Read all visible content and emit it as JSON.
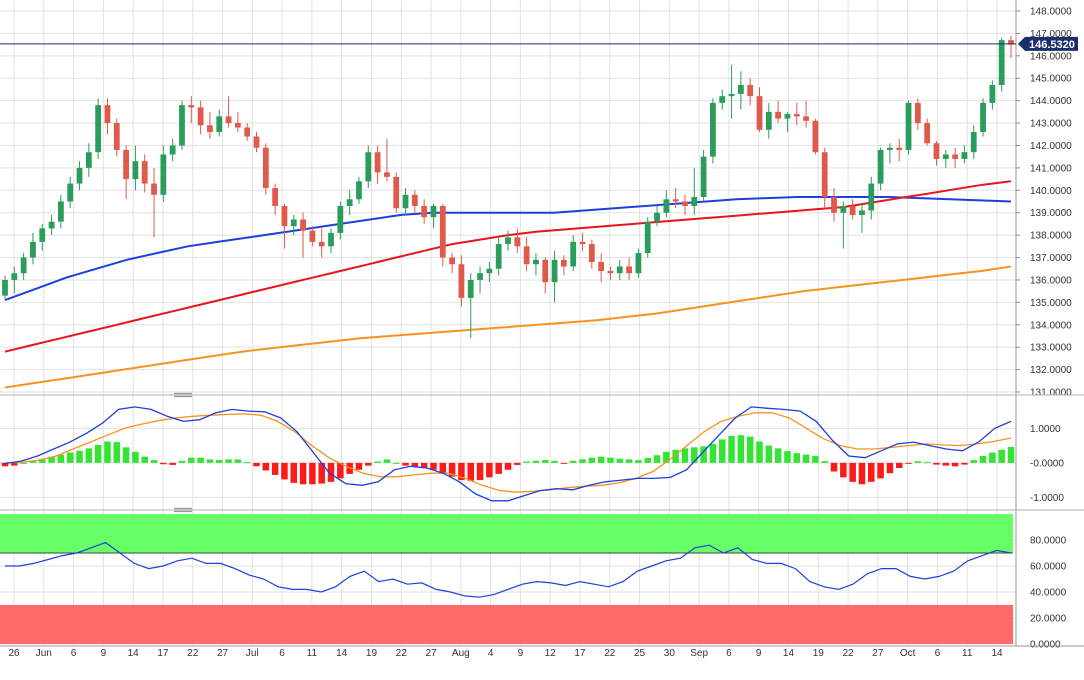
{
  "chart_data": [
    {
      "type": "candlestick",
      "panel": "price",
      "current_price_label": "146.5320",
      "current_price": 146.532,
      "ylim": [
        131.0,
        148.0
      ],
      "y_ticks": [
        "148.0000",
        "147.0000",
        "146.0000",
        "145.0000",
        "144.0000",
        "143.0000",
        "142.0000",
        "141.0000",
        "140.0000",
        "139.0000",
        "138.0000",
        "137.0000",
        "136.0000",
        "135.0000",
        "134.0000",
        "133.0000",
        "132.0000",
        "131.0000"
      ],
      "candles": [
        [
          135.3,
          136.2,
          135.1,
          136.0
        ],
        [
          136.0,
          136.6,
          135.4,
          136.3
        ],
        [
          136.3,
          137.2,
          136.0,
          137.0
        ],
        [
          137.0,
          138.1,
          136.7,
          137.7
        ],
        [
          137.7,
          138.5,
          137.3,
          138.3
        ],
        [
          138.3,
          138.9,
          138.0,
          138.6
        ],
        [
          138.6,
          139.8,
          138.3,
          139.5
        ],
        [
          139.5,
          140.6,
          139.2,
          140.3
        ],
        [
          140.3,
          141.3,
          140.0,
          141.0
        ],
        [
          141.0,
          142.1,
          140.6,
          141.7
        ],
        [
          141.7,
          144.1,
          141.4,
          143.8
        ],
        [
          143.8,
          144.1,
          142.5,
          143.0
        ],
        [
          143.0,
          143.2,
          141.5,
          141.8
        ],
        [
          141.8,
          142.0,
          139.6,
          140.5
        ],
        [
          140.5,
          142.0,
          140.0,
          141.3
        ],
        [
          141.3,
          141.6,
          139.9,
          140.3
        ],
        [
          140.3,
          141.0,
          137.9,
          139.8
        ],
        [
          139.8,
          142.0,
          139.5,
          141.6
        ],
        [
          141.6,
          142.3,
          141.3,
          142.0
        ],
        [
          142.0,
          144.0,
          141.8,
          143.8
        ],
        [
          143.8,
          144.2,
          143.0,
          143.7
        ],
        [
          143.7,
          144.0,
          142.5,
          142.9
        ],
        [
          142.9,
          143.5,
          142.3,
          142.6
        ],
        [
          142.6,
          143.6,
          142.4,
          143.3
        ],
        [
          143.3,
          144.2,
          142.8,
          143.0
        ],
        [
          143.0,
          143.5,
          142.6,
          142.8
        ],
        [
          142.8,
          143.0,
          142.2,
          142.4
        ],
        [
          142.4,
          142.6,
          141.7,
          141.9
        ],
        [
          141.9,
          142.1,
          139.8,
          140.1
        ],
        [
          140.1,
          140.3,
          138.9,
          139.3
        ],
        [
          139.3,
          139.4,
          137.4,
          138.4
        ],
        [
          138.4,
          138.9,
          138.0,
          138.7
        ],
        [
          138.7,
          139.0,
          137.0,
          138.2
        ],
        [
          138.2,
          138.4,
          137.5,
          137.7
        ],
        [
          137.7,
          138.3,
          137.0,
          137.5
        ],
        [
          137.5,
          138.3,
          137.2,
          138.1
        ],
        [
          138.1,
          139.5,
          137.8,
          139.3
        ],
        [
          139.3,
          140.0,
          138.9,
          139.6
        ],
        [
          139.6,
          140.6,
          139.4,
          140.4
        ],
        [
          140.4,
          142.0,
          140.1,
          141.7
        ],
        [
          141.7,
          142.0,
          140.3,
          140.8
        ],
        [
          140.8,
          142.3,
          140.4,
          140.6
        ],
        [
          140.6,
          140.8,
          139.0,
          139.2
        ],
        [
          139.2,
          140.1,
          138.9,
          139.8
        ],
        [
          139.8,
          140.0,
          139.0,
          139.3
        ],
        [
          139.3,
          139.6,
          138.5,
          138.8
        ],
        [
          138.8,
          139.4,
          138.3,
          139.3
        ],
        [
          139.3,
          139.4,
          136.6,
          137.0
        ],
        [
          137.0,
          137.2,
          136.3,
          136.7
        ],
        [
          136.7,
          137.1,
          134.8,
          135.2
        ],
        [
          135.2,
          136.3,
          133.4,
          136.0
        ],
        [
          136.0,
          136.6,
          135.4,
          136.3
        ],
        [
          136.3,
          136.8,
          135.9,
          136.5
        ],
        [
          136.5,
          137.9,
          136.2,
          137.6
        ],
        [
          137.6,
          138.2,
          137.3,
          137.9
        ],
        [
          137.9,
          138.3,
          137.2,
          137.5
        ],
        [
          137.5,
          137.9,
          136.4,
          136.7
        ],
        [
          136.7,
          137.2,
          136.2,
          136.9
        ],
        [
          136.9,
          137.0,
          135.4,
          135.9
        ],
        [
          135.9,
          137.3,
          135.0,
          136.9
        ],
        [
          136.9,
          137.1,
          136.2,
          136.6
        ],
        [
          136.6,
          138.0,
          136.4,
          137.7
        ],
        [
          137.7,
          138.1,
          137.3,
          137.6
        ],
        [
          137.6,
          137.8,
          136.5,
          136.8
        ],
        [
          136.8,
          137.2,
          135.9,
          136.4
        ],
        [
          136.4,
          136.6,
          136.0,
          136.3
        ],
        [
          136.3,
          136.9,
          136.0,
          136.6
        ],
        [
          136.6,
          137.0,
          136.0,
          136.3
        ],
        [
          136.3,
          137.4,
          136.1,
          137.2
        ],
        [
          137.2,
          138.8,
          137.0,
          138.6
        ],
        [
          138.6,
          139.3,
          138.4,
          139.0
        ],
        [
          139.0,
          140.0,
          138.8,
          139.6
        ],
        [
          139.6,
          140.1,
          139.2,
          139.5
        ],
        [
          139.5,
          139.8,
          138.9,
          139.3
        ],
        [
          139.3,
          141.0,
          138.9,
          139.7
        ],
        [
          139.7,
          141.8,
          139.5,
          141.5
        ],
        [
          141.5,
          144.1,
          141.2,
          143.9
        ],
        [
          143.9,
          144.5,
          143.6,
          144.2
        ],
        [
          144.2,
          145.6,
          143.2,
          144.3
        ],
        [
          144.3,
          145.3,
          143.6,
          144.7
        ],
        [
          144.7,
          145.0,
          143.8,
          144.2
        ],
        [
          144.2,
          144.6,
          142.6,
          142.7
        ],
        [
          142.7,
          143.9,
          142.3,
          143.5
        ],
        [
          143.5,
          144.0,
          143.0,
          143.2
        ],
        [
          143.2,
          143.5,
          142.6,
          143.4
        ],
        [
          143.4,
          143.9,
          142.9,
          143.3
        ],
        [
          143.3,
          144.0,
          142.8,
          143.1
        ],
        [
          143.1,
          143.2,
          141.6,
          141.7
        ],
        [
          141.7,
          141.9,
          139.2,
          139.7
        ],
        [
          139.7,
          140.1,
          138.6,
          139.0
        ],
        [
          139.0,
          139.5,
          137.4,
          139.3
        ],
        [
          139.3,
          139.6,
          138.7,
          138.9
        ],
        [
          138.9,
          139.4,
          138.1,
          139.1
        ],
        [
          139.1,
          140.6,
          138.7,
          140.3
        ],
        [
          140.3,
          141.9,
          140.0,
          141.8
        ],
        [
          141.8,
          142.1,
          141.2,
          141.9
        ],
        [
          141.9,
          142.3,
          141.3,
          141.8
        ],
        [
          141.8,
          144.0,
          141.6,
          143.9
        ],
        [
          143.9,
          144.1,
          142.7,
          143.0
        ],
        [
          143.0,
          143.2,
          142.0,
          142.1
        ],
        [
          142.1,
          142.2,
          141.1,
          141.4
        ],
        [
          141.4,
          141.8,
          141.0,
          141.6
        ],
        [
          141.6,
          141.9,
          141.0,
          141.4
        ],
        [
          141.4,
          142.0,
          141.2,
          141.7
        ],
        [
          141.7,
          142.9,
          141.4,
          142.6
        ],
        [
          142.6,
          144.1,
          142.4,
          143.9
        ],
        [
          143.9,
          144.9,
          143.6,
          144.7
        ],
        [
          144.7,
          146.8,
          144.4,
          146.7
        ],
        [
          146.7,
          146.9,
          145.9,
          146.5
        ]
      ],
      "moving_averages": [
        {
          "color": "#1e3fe0",
          "values": [
            135.1,
            135.6,
            136.1,
            136.5,
            136.9,
            137.2,
            137.5,
            137.7,
            137.9,
            138.1,
            138.3,
            138.5,
            138.7,
            138.9,
            139.0,
            139.0,
            139.0,
            139.0,
            139.0,
            139.1,
            139.2,
            139.3,
            139.4,
            139.5,
            139.6,
            139.65,
            139.7,
            139.7,
            139.7,
            139.7,
            139.65,
            139.6,
            139.55,
            139.5
          ]
        },
        {
          "color": "#e8141e",
          "values": [
            132.8,
            133.1,
            133.4,
            133.7,
            134.0,
            134.3,
            134.6,
            134.9,
            135.2,
            135.5,
            135.8,
            136.1,
            136.4,
            136.7,
            137.0,
            137.3,
            137.6,
            137.8,
            138.0,
            138.15,
            138.25,
            138.35,
            138.45,
            138.55,
            138.65,
            138.75,
            138.85,
            138.95,
            139.05,
            139.15,
            139.25,
            139.45,
            139.65,
            139.85,
            140.05,
            140.25,
            140.4
          ]
        },
        {
          "color": "#f7931e",
          "values": [
            131.2,
            131.4,
            131.6,
            131.8,
            132.0,
            132.2,
            132.4,
            132.6,
            132.8,
            132.95,
            133.1,
            133.25,
            133.4,
            133.5,
            133.6,
            133.7,
            133.8,
            133.9,
            134.0,
            134.1,
            134.2,
            134.35,
            134.5,
            134.7,
            134.9,
            135.1,
            135.3,
            135.5,
            135.65,
            135.8,
            135.95,
            136.1,
            136.25,
            136.4,
            136.6
          ]
        }
      ]
    },
    {
      "type": "histogram",
      "panel": "macd",
      "y_ticks": [
        "1.0000",
        "-0.0000",
        "-1.0000"
      ],
      "ylim": [
        -1.25,
        1.85
      ],
      "histogram": [
        -0.1,
        -0.08,
        0.0,
        0.05,
        0.12,
        0.18,
        0.24,
        0.3,
        0.35,
        0.42,
        0.52,
        0.62,
        0.6,
        0.45,
        0.32,
        0.18,
        0.08,
        -0.04,
        -0.06,
        0.06,
        0.15,
        0.15,
        0.1,
        0.08,
        0.1,
        0.1,
        0.02,
        -0.1,
        -0.22,
        -0.35,
        -0.48,
        -0.58,
        -0.62,
        -0.62,
        -0.6,
        -0.55,
        -0.45,
        -0.32,
        -0.2,
        -0.08,
        0.04,
        0.1,
        0.0,
        -0.08,
        -0.12,
        -0.15,
        -0.2,
        -0.3,
        -0.4,
        -0.5,
        -0.52,
        -0.5,
        -0.42,
        -0.32,
        -0.2,
        -0.06,
        0.04,
        0.06,
        0.08,
        0.06,
        -0.02,
        0.06,
        0.1,
        0.15,
        0.18,
        0.15,
        0.12,
        0.1,
        0.08,
        0.14,
        0.22,
        0.32,
        0.38,
        0.42,
        0.45,
        0.48,
        0.55,
        0.68,
        0.78,
        0.8,
        0.76,
        0.62,
        0.5,
        0.42,
        0.34,
        0.28,
        0.24,
        0.2,
        0.05,
        -0.25,
        -0.42,
        -0.55,
        -0.62,
        -0.55,
        -0.45,
        -0.3,
        -0.15,
        -0.02,
        0.05,
        0.02,
        -0.05,
        -0.08,
        -0.1,
        -0.05,
        0.08,
        0.2,
        0.3,
        0.38,
        0.46
      ],
      "fast_line": {
        "color": "#1e3fe0",
        "values": [
          -0.02,
          0.05,
          0.2,
          0.4,
          0.6,
          0.85,
          1.15,
          1.55,
          1.62,
          1.55,
          1.35,
          1.2,
          1.25,
          1.45,
          1.55,
          1.5,
          1.48,
          1.3,
          0.9,
          0.3,
          -0.3,
          -0.6,
          -0.65,
          -0.55,
          -0.2,
          -0.1,
          -0.15,
          -0.3,
          -0.55,
          -0.9,
          -1.1,
          -1.1,
          -0.95,
          -0.8,
          -0.75,
          -0.78,
          -0.65,
          -0.55,
          -0.5,
          -0.45,
          -0.45,
          -0.42,
          -0.2,
          0.3,
          0.8,
          1.3,
          1.62,
          1.58,
          1.55,
          1.5,
          1.2,
          0.65,
          0.2,
          0.15,
          0.35,
          0.55,
          0.6,
          0.5,
          0.4,
          0.35,
          0.6,
          1.0,
          1.2
        ]
      },
      "slow_line": {
        "color": "#f7931e",
        "values": [
          0.0,
          0.02,
          0.08,
          0.2,
          0.4,
          0.6,
          0.8,
          1.0,
          1.12,
          1.22,
          1.3,
          1.35,
          1.38,
          1.4,
          1.42,
          1.38,
          1.2,
          0.9,
          0.5,
          0.15,
          -0.1,
          -0.3,
          -0.4,
          -0.4,
          -0.35,
          -0.3,
          -0.3,
          -0.45,
          -0.65,
          -0.8,
          -0.85,
          -0.82,
          -0.78,
          -0.72,
          -0.68,
          -0.65,
          -0.58,
          -0.45,
          -0.25,
          0.1,
          0.5,
          0.9,
          1.2,
          1.35,
          1.45,
          1.45,
          1.3,
          1.0,
          0.7,
          0.5,
          0.4,
          0.4,
          0.45,
          0.5,
          0.55,
          0.52,
          0.5,
          0.55,
          0.62,
          0.72
        ]
      }
    },
    {
      "type": "line",
      "panel": "rsi",
      "y_ticks": [
        "80.0000",
        "60.0000",
        "40.0000",
        "20.0000",
        "0.0000"
      ],
      "ylim": [
        0,
        100
      ],
      "overbought": 70,
      "oversold": 30,
      "overbought_color": "#66ff66",
      "oversold_color": "#ff6b6b",
      "line": {
        "color": "#1e3fe0",
        "values": [
          60,
          60,
          62,
          65,
          68,
          70,
          74,
          78,
          70,
          62,
          58,
          60,
          64,
          66,
          62,
          62,
          58,
          53,
          50,
          44,
          42,
          42,
          40,
          44,
          52,
          56,
          48,
          50,
          46,
          47,
          42,
          40,
          37,
          36,
          38,
          42,
          46,
          48,
          47,
          45,
          48,
          46,
          44,
          48,
          56,
          60,
          64,
          66,
          74,
          76,
          70,
          74,
          65,
          62,
          62,
          58,
          48,
          44,
          42,
          46,
          54,
          58,
          58,
          52,
          50,
          52,
          56,
          64,
          68,
          72,
          70
        ]
      }
    }
  ],
  "x_axis": {
    "labels": [
      "26",
      "Jun",
      "6",
      "9",
      "14",
      "17",
      "22",
      "27",
      "Jul",
      "6",
      "11",
      "14",
      "19",
      "22",
      "27",
      "Aug",
      "4",
      "9",
      "12",
      "17",
      "22",
      "25",
      "30",
      "Sep",
      "6",
      "9",
      "14",
      "19",
      "22",
      "27",
      "Oct",
      "6",
      "11",
      "14"
    ]
  },
  "colors": {
    "bull": "#2a9d5c",
    "bear": "#e05a4c",
    "price_line": "#1b2f6e",
    "grid": "#e2e2e2",
    "hist_pos": "#33e433",
    "hist_neg": "#ff1a1a"
  }
}
